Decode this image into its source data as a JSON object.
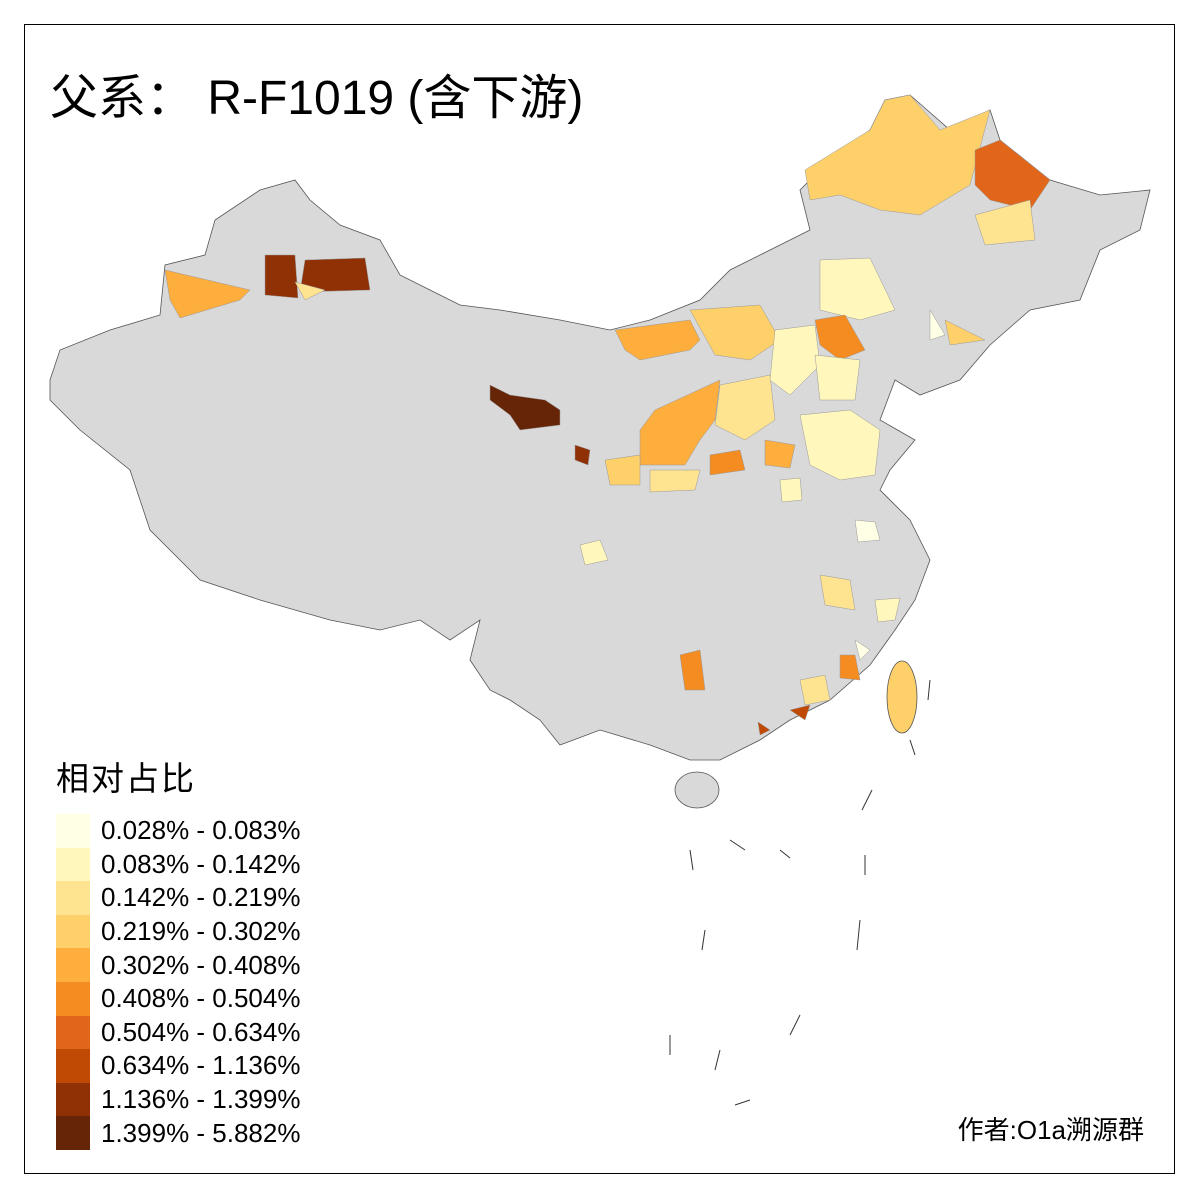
{
  "title": "父系： R-F1019 (含下游)",
  "legend": {
    "title": "相对占比",
    "items": [
      {
        "label": "0.028% - 0.083%",
        "color": "#FFFFE5"
      },
      {
        "label": "0.083% - 0.142%",
        "color": "#FFF7BC"
      },
      {
        "label": "0.142% - 0.219%",
        "color": "#FEE391"
      },
      {
        "label": "0.219% - 0.302%",
        "color": "#FED06A"
      },
      {
        "label": "0.302% - 0.408%",
        "color": "#FDAE3D"
      },
      {
        "label": "0.408% - 0.504%",
        "color": "#F58C22"
      },
      {
        "label": "0.504% - 0.634%",
        "color": "#E2661A"
      },
      {
        "label": "0.634% - 1.136%",
        "color": "#C04A04"
      },
      {
        "label": "1.136% - 1.399%",
        "color": "#8F3005"
      },
      {
        "label": "1.399% - 5.882%",
        "color": "#662506"
      }
    ]
  },
  "no_data_color": "#D9D9D9",
  "author": "作者:O1a溯源群"
}
